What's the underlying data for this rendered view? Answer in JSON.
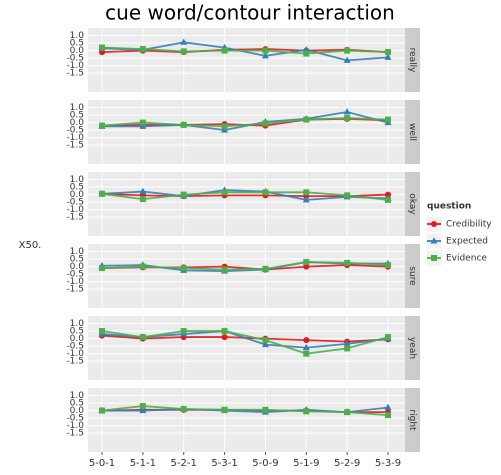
{
  "chart_data": {
    "type": "line",
    "title": "cue word/contour interaction",
    "y_label": "X50.",
    "legend_title": "question",
    "categories": [
      "5-0-1",
      "5-1-1",
      "5-2-1",
      "5-3-1",
      "5-0-9",
      "5-1-9",
      "5-2-9",
      "5-3-9"
    ],
    "ylim": [
      -2.75,
      1.5
    ],
    "yticks": [
      {
        "value": 1,
        "label": "1.0"
      },
      0.5,
      {
        "value": 0,
        "label": "0.0"
      },
      -0.5,
      {
        "value": -1,
        "label": "-1.0"
      },
      -1.5
    ],
    "grid": true,
    "facets": [
      {
        "label": "really",
        "series": [
          {
            "name": "Credibility",
            "color": "#e41a1c",
            "marker": "circle",
            "values": [
              -0.1,
              0.0,
              -0.1,
              0.05,
              0.1,
              0.0,
              0.05,
              -0.1
            ]
          },
          {
            "name": "Expected",
            "color": "#377eb8",
            "marker": "triangle",
            "values": [
              0.15,
              0.05,
              0.55,
              0.2,
              -0.35,
              0.05,
              -0.65,
              -0.45
            ]
          },
          {
            "name": "Evidence",
            "color": "#4daf4a",
            "marker": "square",
            "values": [
              0.2,
              0.1,
              -0.05,
              0.0,
              0.0,
              -0.2,
              0.0,
              -0.1
            ]
          }
        ]
      },
      {
        "label": "well",
        "series": [
          {
            "name": "Credibility",
            "color": "#e41a1c",
            "marker": "circle",
            "values": [
              -0.2,
              -0.15,
              -0.15,
              -0.1,
              -0.2,
              0.2,
              0.25,
              0.15
            ]
          },
          {
            "name": "Expected",
            "color": "#377eb8",
            "marker": "triangle",
            "values": [
              -0.25,
              -0.25,
              -0.15,
              -0.5,
              0.05,
              0.25,
              0.7,
              0.0
            ]
          },
          {
            "name": "Evidence",
            "color": "#4daf4a",
            "marker": "square",
            "values": [
              -0.2,
              0.0,
              -0.15,
              -0.25,
              -0.05,
              0.2,
              0.3,
              0.2
            ]
          }
        ]
      },
      {
        "label": "okay",
        "series": [
          {
            "name": "Credibility",
            "color": "#e41a1c",
            "marker": "circle",
            "values": [
              0.05,
              -0.05,
              -0.1,
              -0.05,
              -0.05,
              -0.1,
              -0.1,
              0.0
            ]
          },
          {
            "name": "Expected",
            "color": "#377eb8",
            "marker": "triangle",
            "values": [
              0.05,
              0.2,
              -0.1,
              0.3,
              0.2,
              -0.35,
              -0.15,
              -0.25
            ]
          },
          {
            "name": "Evidence",
            "color": "#4daf4a",
            "marker": "square",
            "values": [
              0.05,
              -0.3,
              0.0,
              0.15,
              0.15,
              0.15,
              -0.05,
              -0.35
            ]
          }
        ]
      },
      {
        "label": "sure",
        "series": [
          {
            "name": "Credibility",
            "color": "#e41a1c",
            "marker": "circle",
            "values": [
              -0.1,
              -0.05,
              -0.05,
              0.0,
              -0.2,
              0.0,
              0.1,
              0.0
            ]
          },
          {
            "name": "Expected",
            "color": "#377eb8",
            "marker": "triangle",
            "values": [
              0.05,
              0.1,
              -0.25,
              -0.3,
              -0.2,
              0.3,
              0.2,
              0.2
            ]
          },
          {
            "name": "Evidence",
            "color": "#4daf4a",
            "marker": "square",
            "values": [
              -0.1,
              0.0,
              -0.1,
              -0.2,
              -0.15,
              0.3,
              0.25,
              0.1
            ]
          }
        ]
      },
      {
        "label": "yeah",
        "series": [
          {
            "name": "Credibility",
            "color": "#e41a1c",
            "marker": "circle",
            "values": [
              0.2,
              0.0,
              0.1,
              0.1,
              0.0,
              -0.1,
              -0.2,
              -0.05
            ]
          },
          {
            "name": "Expected",
            "color": "#377eb8",
            "marker": "triangle",
            "values": [
              0.3,
              0.1,
              0.3,
              0.5,
              -0.4,
              -0.6,
              -0.35,
              0.0
            ]
          },
          {
            "name": "Evidence",
            "color": "#4daf4a",
            "marker": "square",
            "values": [
              0.5,
              0.1,
              0.5,
              0.5,
              -0.1,
              -1.0,
              -0.65,
              0.1
            ]
          }
        ]
      },
      {
        "label": "right",
        "series": [
          {
            "name": "Credibility",
            "color": "#e41a1c",
            "marker": "circle",
            "values": [
              0.0,
              0.05,
              0.05,
              0.05,
              0.0,
              0.0,
              -0.1,
              -0.1
            ]
          },
          {
            "name": "Expected",
            "color": "#377eb8",
            "marker": "triangle",
            "values": [
              0.0,
              0.0,
              0.1,
              0.0,
              -0.1,
              0.05,
              -0.1,
              0.2
            ]
          },
          {
            "name": "Evidence",
            "color": "#4daf4a",
            "marker": "square",
            "values": [
              0.0,
              0.3,
              0.1,
              0.05,
              0.05,
              -0.05,
              -0.1,
              -0.3
            ]
          }
        ]
      }
    ]
  }
}
